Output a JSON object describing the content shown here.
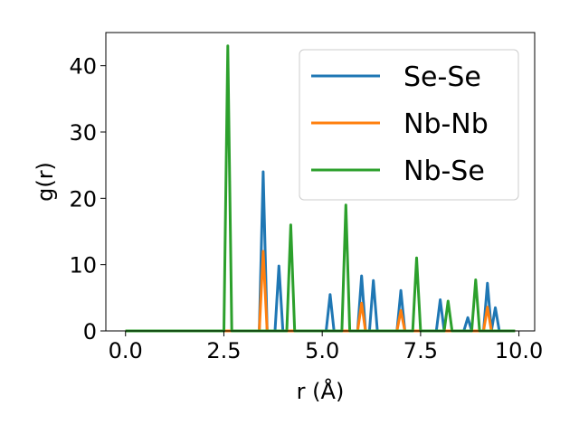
{
  "chart_data": {
    "type": "line",
    "xlabel": "r (Å)",
    "ylabel": "g(r)",
    "xlim": [
      -0.5,
      10.4
    ],
    "ylim": [
      0,
      45
    ],
    "xticks": [
      "0.0",
      "2.5",
      "5.0",
      "7.5",
      "10.0"
    ],
    "xtick_values": [
      0,
      2.5,
      5,
      7.5,
      10
    ],
    "yticks": [
      "0",
      "10",
      "20",
      "30",
      "40"
    ],
    "ytick_values": [
      0,
      10,
      20,
      30,
      40
    ],
    "grid": false,
    "legend_position": "top-right",
    "series": [
      {
        "name": "Se-Se",
        "color": "#1f77b4",
        "x": [
          0,
          3.4,
          3.5,
          3.6,
          3.8,
          3.9,
          4.0,
          5.1,
          5.2,
          5.3,
          5.9,
          6.0,
          6.1,
          6.2,
          6.3,
          6.4,
          6.9,
          7.0,
          7.1,
          7.9,
          8.0,
          8.1,
          8.6,
          8.7,
          8.8,
          8.9,
          9.0,
          9.1,
          9.2,
          9.3,
          9.4,
          9.5,
          9.9
        ],
        "y": [
          0,
          0,
          24,
          0,
          0,
          9.8,
          0,
          0,
          5.5,
          0,
          0,
          8.3,
          0,
          0,
          7.6,
          0,
          0,
          6.1,
          0,
          0,
          4.7,
          0,
          0,
          2.0,
          0,
          0,
          0,
          0,
          7.2,
          0,
          3.5,
          0,
          0
        ]
      },
      {
        "name": "Nb-Nb",
        "color": "#ff7f0e",
        "x": [
          0,
          3.4,
          3.5,
          3.6,
          5.9,
          6.0,
          6.1,
          6.9,
          7.0,
          7.1,
          9.1,
          9.2,
          9.3,
          9.9
        ],
        "y": [
          0,
          0,
          12,
          0,
          0,
          4.2,
          0,
          0,
          3.1,
          0,
          0,
          3.6,
          0,
          0
        ]
      },
      {
        "name": "Nb-Se",
        "color": "#2ca02c",
        "x": [
          0,
          2.5,
          2.6,
          2.7,
          4.1,
          4.2,
          4.3,
          5.5,
          5.6,
          5.7,
          7.3,
          7.4,
          7.5,
          8.1,
          8.2,
          8.3,
          8.8,
          8.9,
          9.0,
          9.9
        ],
        "y": [
          0,
          0,
          43,
          0,
          0,
          16,
          0,
          0,
          19,
          0,
          0,
          11,
          0,
          0,
          4.5,
          0,
          0,
          7.7,
          0,
          0
        ]
      }
    ]
  }
}
